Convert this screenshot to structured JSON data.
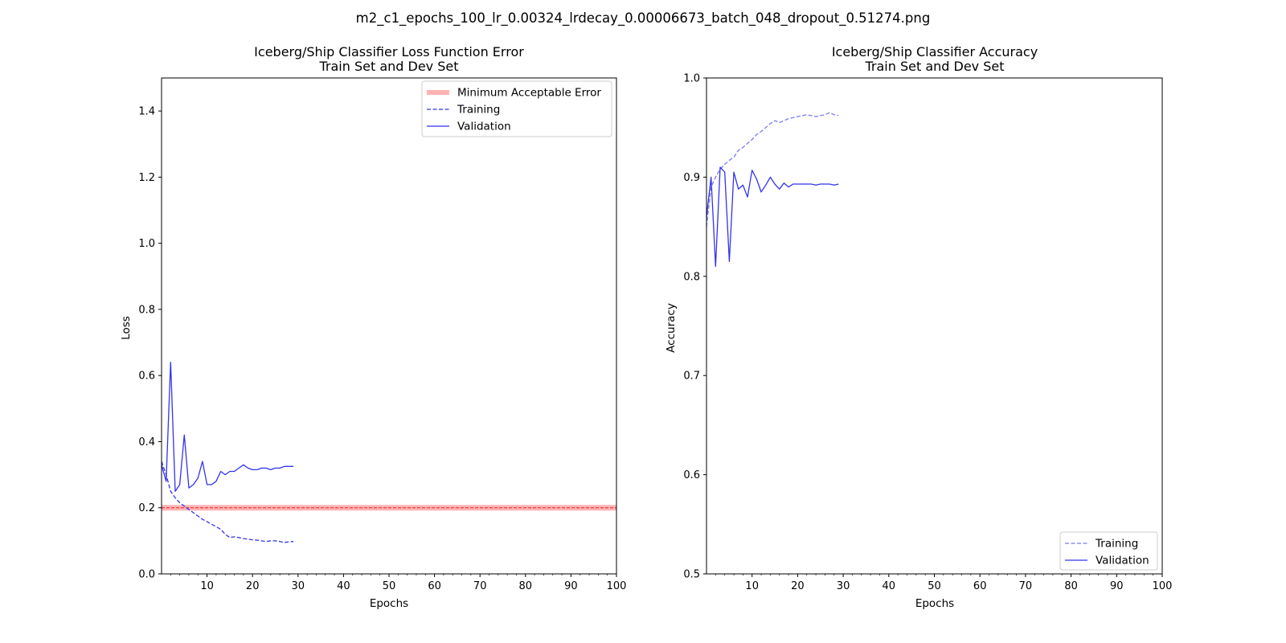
{
  "figure": {
    "suptitle": "m2_c1_epochs_100_lr_0.00324_lrdecay_0.00006673_batch_048_dropout_0.51274.png"
  },
  "colors": {
    "series_blue": "#3333ee",
    "series_blue_light": "#7b7bf2",
    "threshold_fill": "#ffb3b3",
    "threshold_line": "#ee2222"
  },
  "chart_data": [
    {
      "type": "line",
      "title": "Iceberg/Ship Classifier Loss Function Error",
      "subtitle": "Train Set and Dev Set",
      "xlabel": "Epochs",
      "ylabel": "Loss",
      "xlim": [
        0,
        100
      ],
      "ylim": [
        0,
        1.5
      ],
      "xticks": [
        10,
        20,
        30,
        40,
        50,
        60,
        70,
        80,
        90,
        100
      ],
      "yticks": [
        0.0,
        0.2,
        0.4,
        0.6,
        0.8,
        1.0,
        1.2,
        1.4
      ],
      "grid": false,
      "legend_position": "top-right",
      "threshold": {
        "name": "Minimum Acceptable Error",
        "value": 0.2
      },
      "series": [
        {
          "name": "Training",
          "style": "dashed",
          "x": [
            0,
            1,
            2,
            3,
            4,
            5,
            6,
            7,
            8,
            9,
            10,
            11,
            12,
            13,
            14,
            15,
            16,
            17,
            18,
            19,
            20,
            21,
            22,
            23,
            24,
            25,
            26,
            27,
            28,
            29
          ],
          "values": [
            0.34,
            0.3,
            0.25,
            0.23,
            0.215,
            0.205,
            0.195,
            0.185,
            0.175,
            0.165,
            0.158,
            0.15,
            0.143,
            0.135,
            0.12,
            0.11,
            0.112,
            0.11,
            0.107,
            0.105,
            0.103,
            0.102,
            0.1,
            0.098,
            0.1,
            0.1,
            0.098,
            0.095,
            0.097,
            0.098
          ]
        },
        {
          "name": "Validation",
          "style": "solid",
          "x": [
            0,
            1,
            2,
            3,
            4,
            5,
            6,
            7,
            8,
            9,
            10,
            11,
            12,
            13,
            14,
            15,
            16,
            17,
            18,
            19,
            20,
            21,
            22,
            23,
            24,
            25,
            26,
            27,
            28,
            29
          ],
          "values": [
            0.33,
            0.28,
            0.64,
            0.25,
            0.27,
            0.42,
            0.26,
            0.27,
            0.29,
            0.34,
            0.27,
            0.27,
            0.28,
            0.31,
            0.3,
            0.31,
            0.31,
            0.32,
            0.33,
            0.32,
            0.315,
            0.315,
            0.32,
            0.32,
            0.315,
            0.32,
            0.32,
            0.325,
            0.325,
            0.325
          ]
        }
      ]
    },
    {
      "type": "line",
      "title": "Iceberg/Ship Classifier Accuracy",
      "subtitle": "Train Set and Dev Set",
      "xlabel": "Epochs",
      "ylabel": "Accuracy",
      "xlim": [
        0,
        100
      ],
      "ylim": [
        0.5,
        1.0
      ],
      "xticks": [
        10,
        20,
        30,
        40,
        50,
        60,
        70,
        80,
        90,
        100
      ],
      "yticks": [
        0.5,
        0.6,
        0.7,
        0.8,
        0.9,
        1.0
      ],
      "grid": false,
      "legend_position": "bottom-right",
      "series": [
        {
          "name": "Training",
          "style": "dashed",
          "x": [
            0,
            1,
            2,
            3,
            4,
            5,
            6,
            7,
            8,
            9,
            10,
            11,
            12,
            13,
            14,
            15,
            16,
            17,
            18,
            19,
            20,
            21,
            22,
            23,
            24,
            25,
            26,
            27,
            28,
            29
          ],
          "values": [
            0.85,
            0.89,
            0.9,
            0.908,
            0.913,
            0.917,
            0.92,
            0.927,
            0.93,
            0.934,
            0.938,
            0.943,
            0.946,
            0.95,
            0.954,
            0.957,
            0.955,
            0.957,
            0.959,
            0.96,
            0.961,
            0.962,
            0.963,
            0.962,
            0.961,
            0.962,
            0.963,
            0.965,
            0.963,
            0.962
          ]
        },
        {
          "name": "Validation",
          "style": "solid",
          "x": [
            0,
            1,
            2,
            3,
            4,
            5,
            6,
            7,
            8,
            9,
            10,
            11,
            12,
            13,
            14,
            15,
            16,
            17,
            18,
            19,
            20,
            21,
            22,
            23,
            24,
            25,
            26,
            27,
            28,
            29
          ],
          "values": [
            0.86,
            0.9,
            0.81,
            0.91,
            0.905,
            0.815,
            0.905,
            0.888,
            0.892,
            0.88,
            0.907,
            0.898,
            0.885,
            0.892,
            0.9,
            0.893,
            0.888,
            0.894,
            0.89,
            0.893,
            0.893,
            0.893,
            0.893,
            0.893,
            0.892,
            0.893,
            0.893,
            0.893,
            0.892,
            0.893
          ]
        }
      ]
    }
  ]
}
